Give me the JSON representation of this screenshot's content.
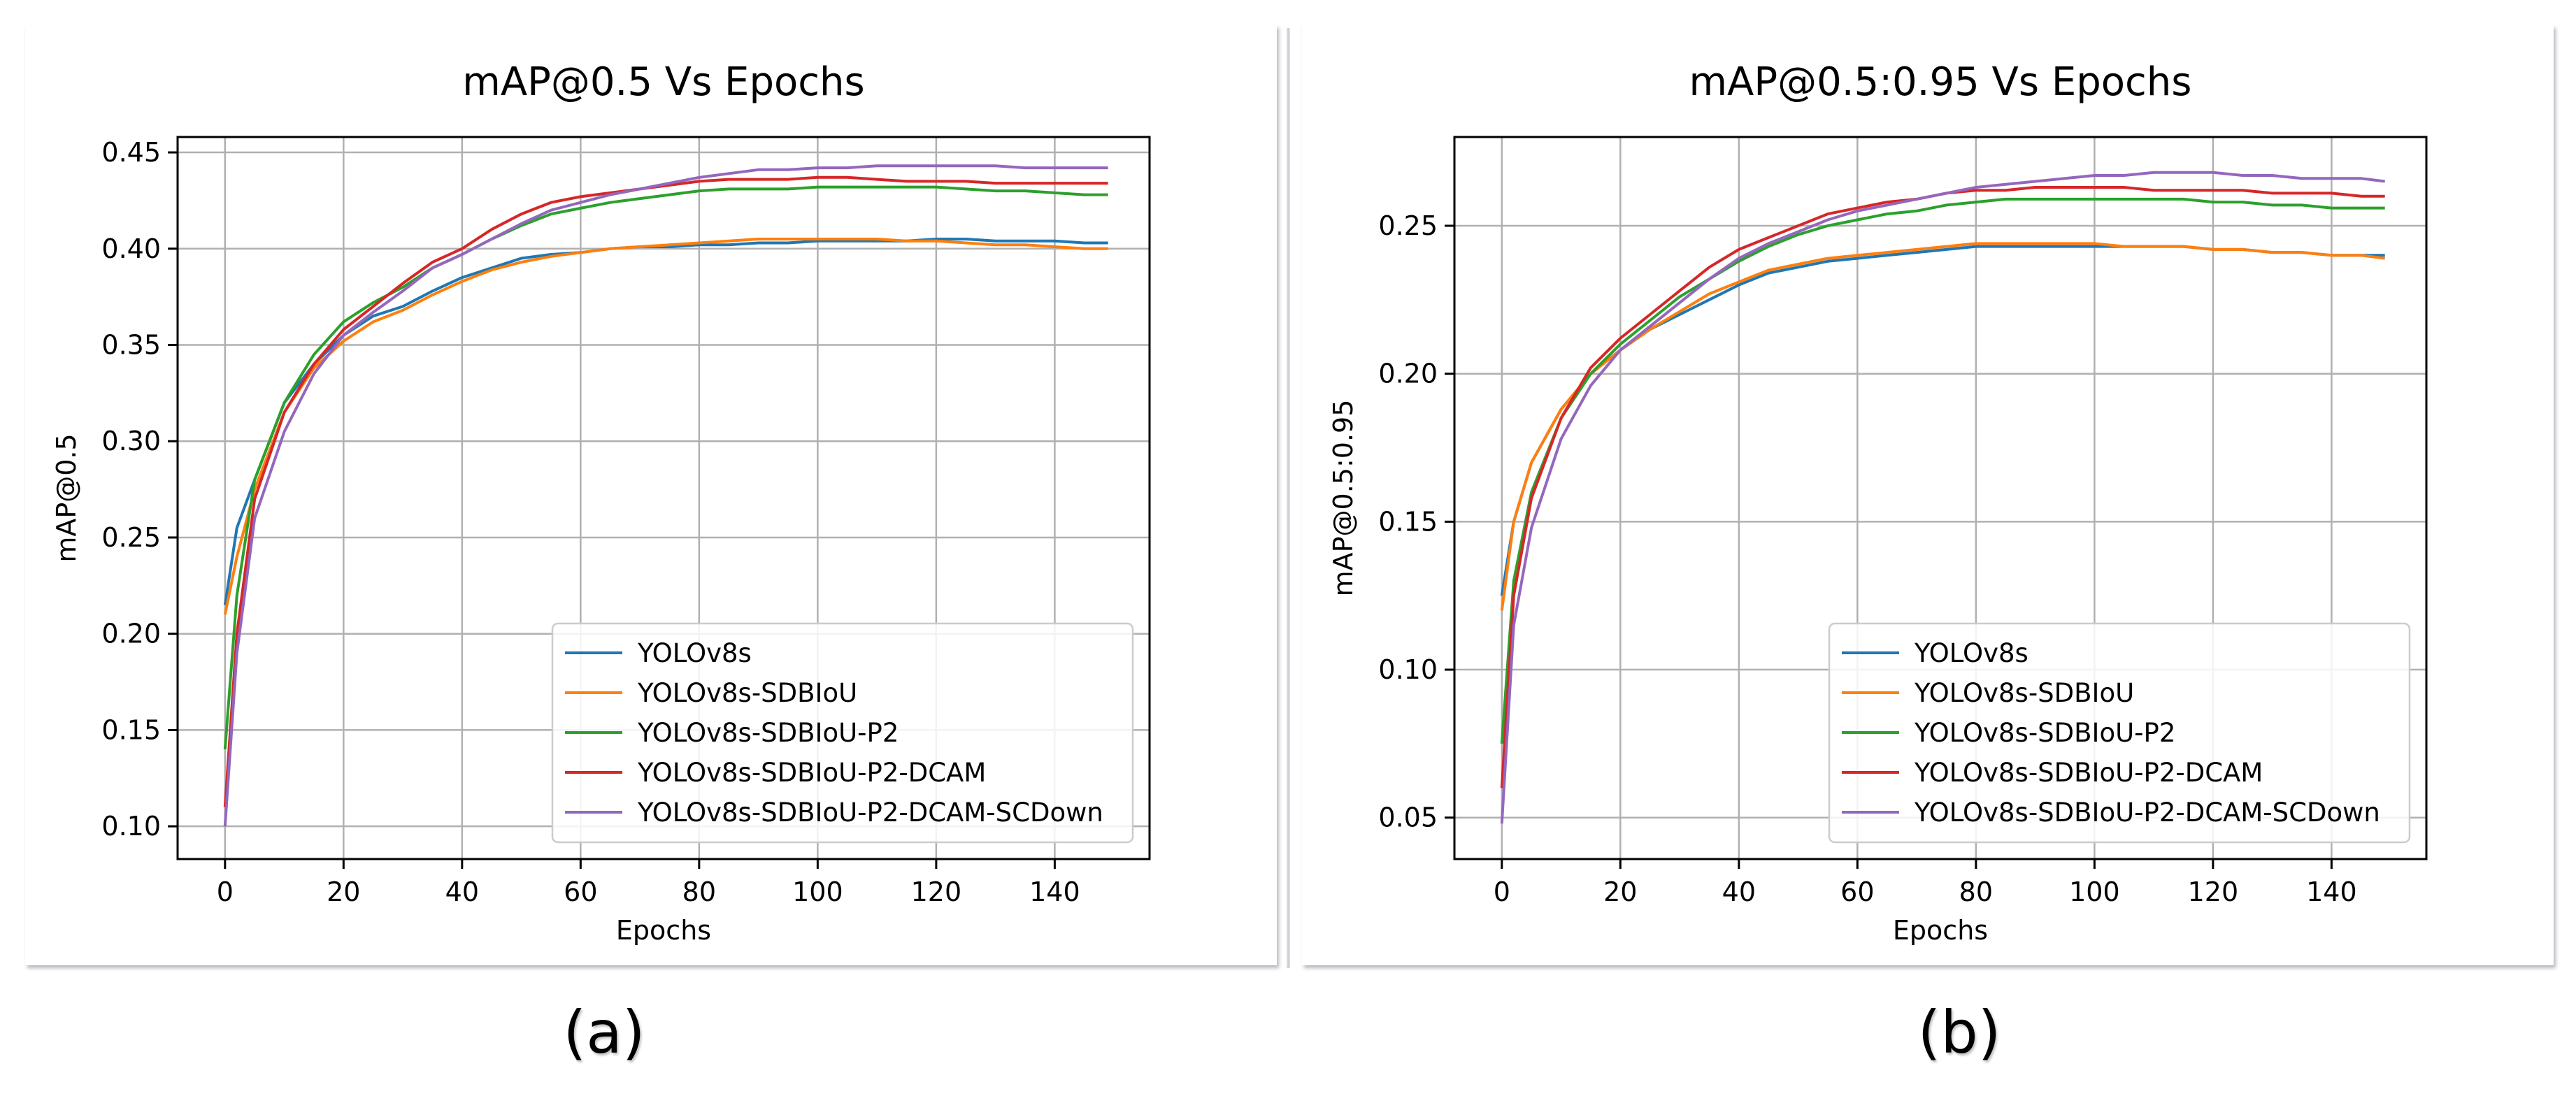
{
  "chart_data": [
    {
      "type": "line",
      "title": "mAP@0.5 Vs Epochs",
      "xlabel": "Epochs",
      "ylabel": "mAP@0.5",
      "xlim": [
        -8,
        156
      ],
      "ylim": [
        0.083,
        0.458
      ],
      "xticks": [
        0,
        20,
        40,
        60,
        80,
        100,
        120,
        140
      ],
      "yticks": [
        0.1,
        0.15,
        0.2,
        0.25,
        0.3,
        0.35,
        0.4,
        0.45
      ],
      "ytick_decimals": 2,
      "grid": true,
      "legend": "lower-right",
      "x": [
        0,
        2,
        5,
        10,
        15,
        20,
        25,
        30,
        35,
        40,
        45,
        50,
        55,
        60,
        65,
        70,
        75,
        80,
        85,
        90,
        95,
        100,
        105,
        110,
        115,
        120,
        125,
        130,
        135,
        140,
        145,
        149
      ],
      "series": [
        {
          "name": "YOLOv8s",
          "color": "#1f77b4",
          "values": [
            0.215,
            0.255,
            0.28,
            0.32,
            0.34,
            0.355,
            0.365,
            0.37,
            0.378,
            0.385,
            0.39,
            0.395,
            0.397,
            0.398,
            0.4,
            0.401,
            0.401,
            0.402,
            0.402,
            0.403,
            0.403,
            0.404,
            0.404,
            0.404,
            0.404,
            0.405,
            0.405,
            0.404,
            0.404,
            0.404,
            0.403,
            0.403
          ]
        },
        {
          "name": "YOLOv8s-SDBIoU",
          "color": "#ff7f0e",
          "values": [
            0.21,
            0.24,
            0.275,
            0.315,
            0.338,
            0.352,
            0.362,
            0.368,
            0.376,
            0.383,
            0.389,
            0.393,
            0.396,
            0.398,
            0.4,
            0.401,
            0.402,
            0.403,
            0.404,
            0.405,
            0.405,
            0.405,
            0.405,
            0.405,
            0.404,
            0.404,
            0.403,
            0.402,
            0.402,
            0.401,
            0.4,
            0.4
          ]
        },
        {
          "name": "YOLOv8s-SDBIoU-P2",
          "color": "#2ca02c",
          "values": [
            0.14,
            0.22,
            0.28,
            0.32,
            0.345,
            0.362,
            0.372,
            0.38,
            0.39,
            0.397,
            0.405,
            0.412,
            0.418,
            0.421,
            0.424,
            0.426,
            0.428,
            0.43,
            0.431,
            0.431,
            0.431,
            0.432,
            0.432,
            0.432,
            0.432,
            0.432,
            0.431,
            0.43,
            0.43,
            0.429,
            0.428,
            0.428
          ]
        },
        {
          "name": "YOLOv8s-SDBIoU-P2-DCAM",
          "color": "#d62728",
          "values": [
            0.11,
            0.2,
            0.27,
            0.315,
            0.34,
            0.358,
            0.37,
            0.382,
            0.393,
            0.4,
            0.41,
            0.418,
            0.424,
            0.427,
            0.429,
            0.431,
            0.433,
            0.435,
            0.436,
            0.436,
            0.436,
            0.437,
            0.437,
            0.436,
            0.435,
            0.435,
            0.435,
            0.434,
            0.434,
            0.434,
            0.434,
            0.434
          ]
        },
        {
          "name": "YOLOv8s-SDBIoU-P2-DCAM-SCDown",
          "color": "#9467bd",
          "values": [
            0.1,
            0.19,
            0.26,
            0.305,
            0.335,
            0.355,
            0.367,
            0.378,
            0.39,
            0.397,
            0.405,
            0.413,
            0.42,
            0.424,
            0.428,
            0.431,
            0.434,
            0.437,
            0.439,
            0.441,
            0.441,
            0.442,
            0.442,
            0.443,
            0.443,
            0.443,
            0.443,
            0.443,
            0.442,
            0.442,
            0.442,
            0.442
          ]
        }
      ]
    },
    {
      "type": "line",
      "title": "mAP@0.5:0.95 Vs Epochs",
      "xlabel": "Epochs",
      "ylabel": "mAP@0.5:0.95",
      "xlim": [
        -8,
        156
      ],
      "ylim": [
        0.036,
        0.28
      ],
      "xticks": [
        0,
        20,
        40,
        60,
        80,
        100,
        120,
        140
      ],
      "yticks": [
        0.05,
        0.1,
        0.15,
        0.2,
        0.25
      ],
      "ytick_decimals": 2,
      "grid": true,
      "legend": "lower-right",
      "x": [
        0,
        2,
        5,
        10,
        15,
        20,
        25,
        30,
        35,
        40,
        45,
        50,
        55,
        60,
        65,
        70,
        75,
        80,
        85,
        90,
        95,
        100,
        105,
        110,
        115,
        120,
        125,
        130,
        135,
        140,
        145,
        149
      ],
      "series": [
        {
          "name": "YOLOv8s",
          "color": "#1f77b4",
          "values": [
            0.125,
            0.15,
            0.17,
            0.188,
            0.2,
            0.208,
            0.215,
            0.22,
            0.225,
            0.23,
            0.234,
            0.236,
            0.238,
            0.239,
            0.24,
            0.241,
            0.242,
            0.243,
            0.243,
            0.243,
            0.243,
            0.243,
            0.243,
            0.243,
            0.243,
            0.242,
            0.242,
            0.241,
            0.241,
            0.24,
            0.24,
            0.24
          ]
        },
        {
          "name": "YOLOv8s-SDBIoU",
          "color": "#ff7f0e",
          "values": [
            0.12,
            0.15,
            0.17,
            0.188,
            0.2,
            0.208,
            0.215,
            0.221,
            0.227,
            0.231,
            0.235,
            0.237,
            0.239,
            0.24,
            0.241,
            0.242,
            0.243,
            0.244,
            0.244,
            0.244,
            0.244,
            0.244,
            0.243,
            0.243,
            0.243,
            0.242,
            0.242,
            0.241,
            0.241,
            0.24,
            0.24,
            0.239
          ]
        },
        {
          "name": "YOLOv8s-SDBIoU-P2",
          "color": "#2ca02c",
          "values": [
            0.075,
            0.13,
            0.16,
            0.185,
            0.2,
            0.21,
            0.218,
            0.226,
            0.232,
            0.238,
            0.243,
            0.247,
            0.25,
            0.252,
            0.254,
            0.255,
            0.257,
            0.258,
            0.259,
            0.259,
            0.259,
            0.259,
            0.259,
            0.259,
            0.259,
            0.258,
            0.258,
            0.257,
            0.257,
            0.256,
            0.256,
            0.256
          ]
        },
        {
          "name": "YOLOv8s-SDBIoU-P2-DCAM",
          "color": "#d62728",
          "values": [
            0.06,
            0.125,
            0.158,
            0.185,
            0.202,
            0.212,
            0.22,
            0.228,
            0.236,
            0.242,
            0.246,
            0.25,
            0.254,
            0.256,
            0.258,
            0.259,
            0.261,
            0.262,
            0.262,
            0.263,
            0.263,
            0.263,
            0.263,
            0.262,
            0.262,
            0.262,
            0.262,
            0.261,
            0.261,
            0.261,
            0.26,
            0.26
          ]
        },
        {
          "name": "YOLOv8s-SDBIoU-P2-DCAM-SCDown",
          "color": "#9467bd",
          "values": [
            0.048,
            0.115,
            0.148,
            0.178,
            0.196,
            0.208,
            0.216,
            0.224,
            0.232,
            0.239,
            0.244,
            0.248,
            0.252,
            0.255,
            0.257,
            0.259,
            0.261,
            0.263,
            0.264,
            0.265,
            0.266,
            0.267,
            0.267,
            0.268,
            0.268,
            0.268,
            0.267,
            0.267,
            0.266,
            0.266,
            0.266,
            0.265
          ]
        }
      ]
    }
  ],
  "captions": [
    "(a)",
    "(b)"
  ]
}
